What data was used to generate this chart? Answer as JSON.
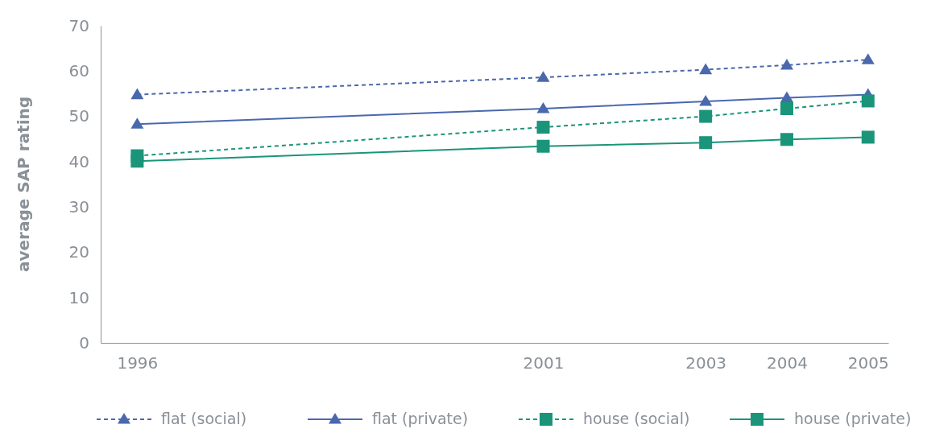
{
  "chart_data": {
    "type": "line",
    "ylabel": "average SAP rating",
    "x": [
      1996,
      2001,
      2003,
      2004,
      2005
    ],
    "xlim": [
      1995.55,
      2005.25
    ],
    "xticks": [
      1996,
      2001,
      2003,
      2004,
      2005
    ],
    "ylim": [
      0,
      70
    ],
    "yticks": [
      0,
      10,
      20,
      30,
      40,
      50,
      60,
      70
    ],
    "grid": false,
    "legend": "bottom",
    "series": [
      {
        "name": "flat (social)",
        "color": "#4a68ad",
        "marker": "triangle",
        "line_style": "dashed",
        "values": [
          54.8,
          58.6,
          60.3,
          61.3,
          62.5
        ]
      },
      {
        "name": "flat (private)",
        "color": "#4a68ad",
        "marker": "triangle",
        "line_style": "solid",
        "values": [
          48.3,
          51.7,
          53.3,
          54.1,
          54.8
        ]
      },
      {
        "name": "house (social)",
        "color": "#1a957a",
        "marker": "square",
        "line_style": "dashed",
        "values": [
          41.3,
          47.6,
          50.0,
          51.7,
          53.4
        ]
      },
      {
        "name": "house (private)",
        "color": "#1a957a",
        "marker": "square",
        "line_style": "solid",
        "values": [
          40.1,
          43.4,
          44.2,
          44.9,
          45.4
        ]
      }
    ]
  }
}
